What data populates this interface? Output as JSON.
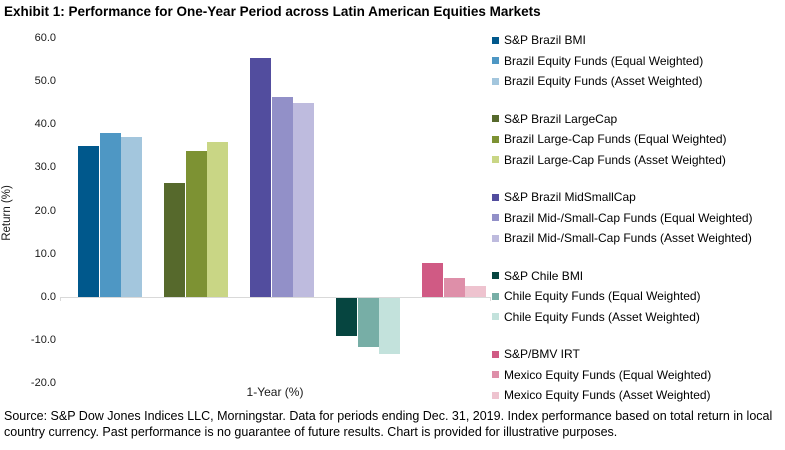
{
  "title": "Exhibit 1: Performance for One-Year Period across Latin American Equities Markets",
  "footer": {
    "text": "Source: S&P Dow Jones Indices LLC, Morningstar. Data for periods ending Dec. 31, 2019. Index performance based on total return in local country currency. Past performance is no guarantee of future results. Chart is provided for illustrative purposes."
  },
  "axis": {
    "line_color": "#d9d9d9",
    "text_color": "#1a1a1a"
  },
  "chart_data": {
    "type": "bar",
    "title": "Exhibit 1: Performance for One-Year Period across Latin American Equities Markets",
    "xlabel": "1-Year (%)",
    "ylabel": "Return (%)",
    "ylim": [
      -20,
      60
    ],
    "ytick_step": 10,
    "yticks": [
      60.0,
      50.0,
      40.0,
      30.0,
      20.0,
      10.0,
      0.0,
      -10.0,
      -20.0
    ],
    "grid": false,
    "legend_position": "right",
    "categories": [
      "1-Year (%)"
    ],
    "series": [
      {
        "name": "S&P Brazil BMI",
        "group": 0,
        "color": "#00588C",
        "values": [
          35.0
        ]
      },
      {
        "name": "Brazil Equity Funds (Equal Weighted)",
        "group": 0,
        "color": "#4E97C4",
        "values": [
          38.0
        ]
      },
      {
        "name": "Brazil Equity Funds (Asset Weighted)",
        "group": 0,
        "color": "#A3C6DD",
        "values": [
          37.1
        ]
      },
      {
        "name": "S&P Brazil LargeCap",
        "group": 1,
        "color": "#56692C",
        "values": [
          26.3
        ]
      },
      {
        "name": "Brazil Large-Cap Funds (Equal Weighted)",
        "group": 1,
        "color": "#7D9233",
        "values": [
          33.9
        ]
      },
      {
        "name": "Brazil Large-Cap Funds (Asset Weighted)",
        "group": 1,
        "color": "#C9D685",
        "values": [
          35.9
        ]
      },
      {
        "name": "S&P Brazil MidSmallCap",
        "group": 2,
        "color": "#524D9E",
        "values": [
          55.4
        ]
      },
      {
        "name": "Brazil Mid-/Small-Cap Funds (Equal Weighted)",
        "group": 2,
        "color": "#9290C8",
        "values": [
          46.3
        ]
      },
      {
        "name": "Brazil Mid-/Small-Cap Funds (Asset Weighted)",
        "group": 2,
        "color": "#BEBBDE",
        "values": [
          45.0
        ]
      },
      {
        "name": "S&P Chile BMI",
        "group": 3,
        "color": "#064540",
        "values": [
          -9.2
        ]
      },
      {
        "name": "Chile Equity Funds (Equal Weighted)",
        "group": 3,
        "color": "#77AEA6",
        "values": [
          -11.6
        ]
      },
      {
        "name": "Chile Equity Funds (Asset Weighted)",
        "group": 3,
        "color": "#C3E2DC",
        "values": [
          -13.2
        ]
      },
      {
        "name": "S&P/BMV IRT",
        "group": 4,
        "color": "#D05A84",
        "values": [
          7.8
        ]
      },
      {
        "name": "Mexico Equity Funds (Equal Weighted)",
        "group": 4,
        "color": "#DE8FA9",
        "values": [
          4.3
        ]
      },
      {
        "name": "Mexico Equity Funds (Asset Weighted)",
        "group": 4,
        "color": "#EEC3CF",
        "values": [
          2.4
        ]
      }
    ]
  }
}
